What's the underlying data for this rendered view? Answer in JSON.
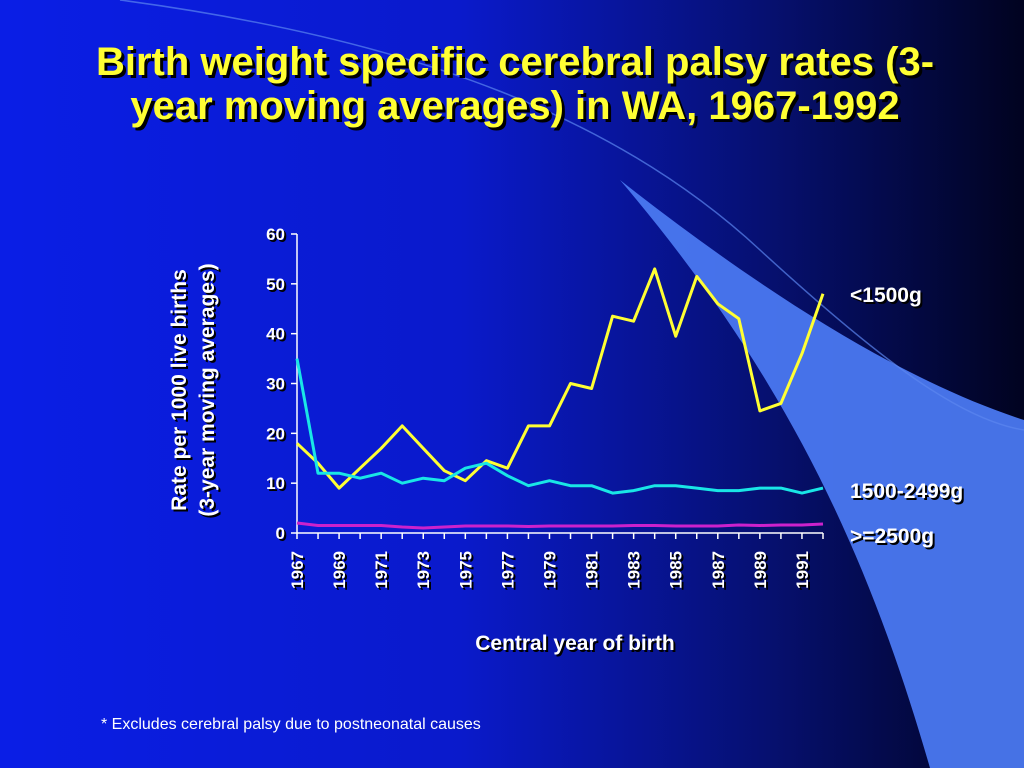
{
  "slide": {
    "title": "Birth weight specific cerebral palsy rates (3-year moving averages) in WA, 1967-1992",
    "footnote": "* Excludes cerebral palsy due to postneonatal causes"
  },
  "colors": {
    "lt1500": "#ffff33",
    "mid": "#19e6e6",
    "ge2500": "#cc22cc",
    "text": "#ffffff",
    "title": "#ffff33",
    "accent_shape": "#4a78f0"
  },
  "chart_data": {
    "type": "line",
    "title": "",
    "xlabel": "Central year of birth",
    "ylabel_lines": [
      "Rate per 1000 live births",
      "(3-year moving averages)"
    ],
    "ylim": [
      0,
      60
    ],
    "yticks": [
      0,
      10,
      20,
      30,
      40,
      50,
      60
    ],
    "x": [
      1967,
      1968,
      1969,
      1970,
      1971,
      1972,
      1973,
      1974,
      1975,
      1976,
      1977,
      1978,
      1979,
      1980,
      1981,
      1982,
      1983,
      1984,
      1985,
      1986,
      1987,
      1988,
      1989,
      1990,
      1991,
      1992
    ],
    "xtick_labels": [
      "1967",
      "1969",
      "1971",
      "1973",
      "1975",
      "1977",
      "1979",
      "1981",
      "1983",
      "1985",
      "1987",
      "1989",
      "1991"
    ],
    "grid": false,
    "legend": "series labels at right end of lines",
    "series": [
      {
        "name": "<1500g",
        "color_key": "lt1500",
        "values": [
          18,
          14,
          9,
          13,
          17,
          21.5,
          17,
          12.5,
          10.5,
          14.5,
          13,
          21.5,
          21.5,
          30,
          29,
          43.5,
          42.5,
          53,
          39.5,
          51.5,
          46,
          43,
          24.5,
          26,
          36,
          48
        ]
      },
      {
        "name": "1500-2499g",
        "color_key": "mid",
        "values": [
          35,
          12,
          12,
          11,
          12,
          10,
          11,
          10.5,
          13,
          14,
          11.5,
          9.5,
          10.5,
          9.5,
          9.5,
          8,
          8.5,
          9.5,
          9.5,
          9,
          8.5,
          8.5,
          9,
          9,
          8,
          9
        ]
      },
      {
        "name": ">=2500g",
        "color_key": "ge2500",
        "values": [
          2,
          1.5,
          1.5,
          1.5,
          1.5,
          1.2,
          1,
          1.2,
          1.4,
          1.4,
          1.4,
          1.3,
          1.4,
          1.4,
          1.4,
          1.4,
          1.5,
          1.5,
          1.4,
          1.4,
          1.4,
          1.6,
          1.5,
          1.6,
          1.6,
          1.8
        ]
      }
    ]
  }
}
